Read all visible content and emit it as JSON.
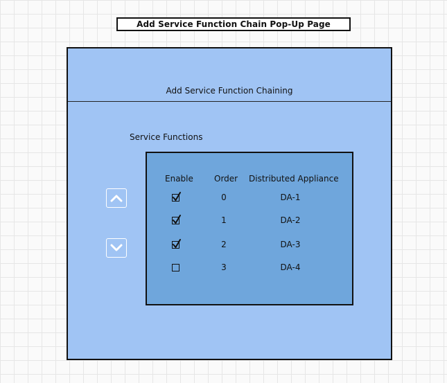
{
  "page": {
    "title": "Add Service Function Chain Pop-Up Page"
  },
  "dialog": {
    "title": "Add Service Function Chaining",
    "section_label": "Service Functions",
    "columns": {
      "enable": "Enable",
      "order": "Order",
      "appliance": "Distributed Appliance"
    },
    "rows": [
      {
        "enabled": true,
        "order": "0",
        "appliance": "DA-1"
      },
      {
        "enabled": true,
        "order": "1",
        "appliance": "DA-2"
      },
      {
        "enabled": true,
        "order": "2",
        "appliance": "DA-3"
      },
      {
        "enabled": false,
        "order": "3",
        "appliance": "DA-4"
      }
    ],
    "buttons": {
      "move_up_icon": "chevron-up-icon",
      "move_down_icon": "chevron-down-icon"
    }
  },
  "colors": {
    "dialog_background": "#a0c4f4",
    "list_background": "#6fa6dc",
    "border": "#111111"
  }
}
